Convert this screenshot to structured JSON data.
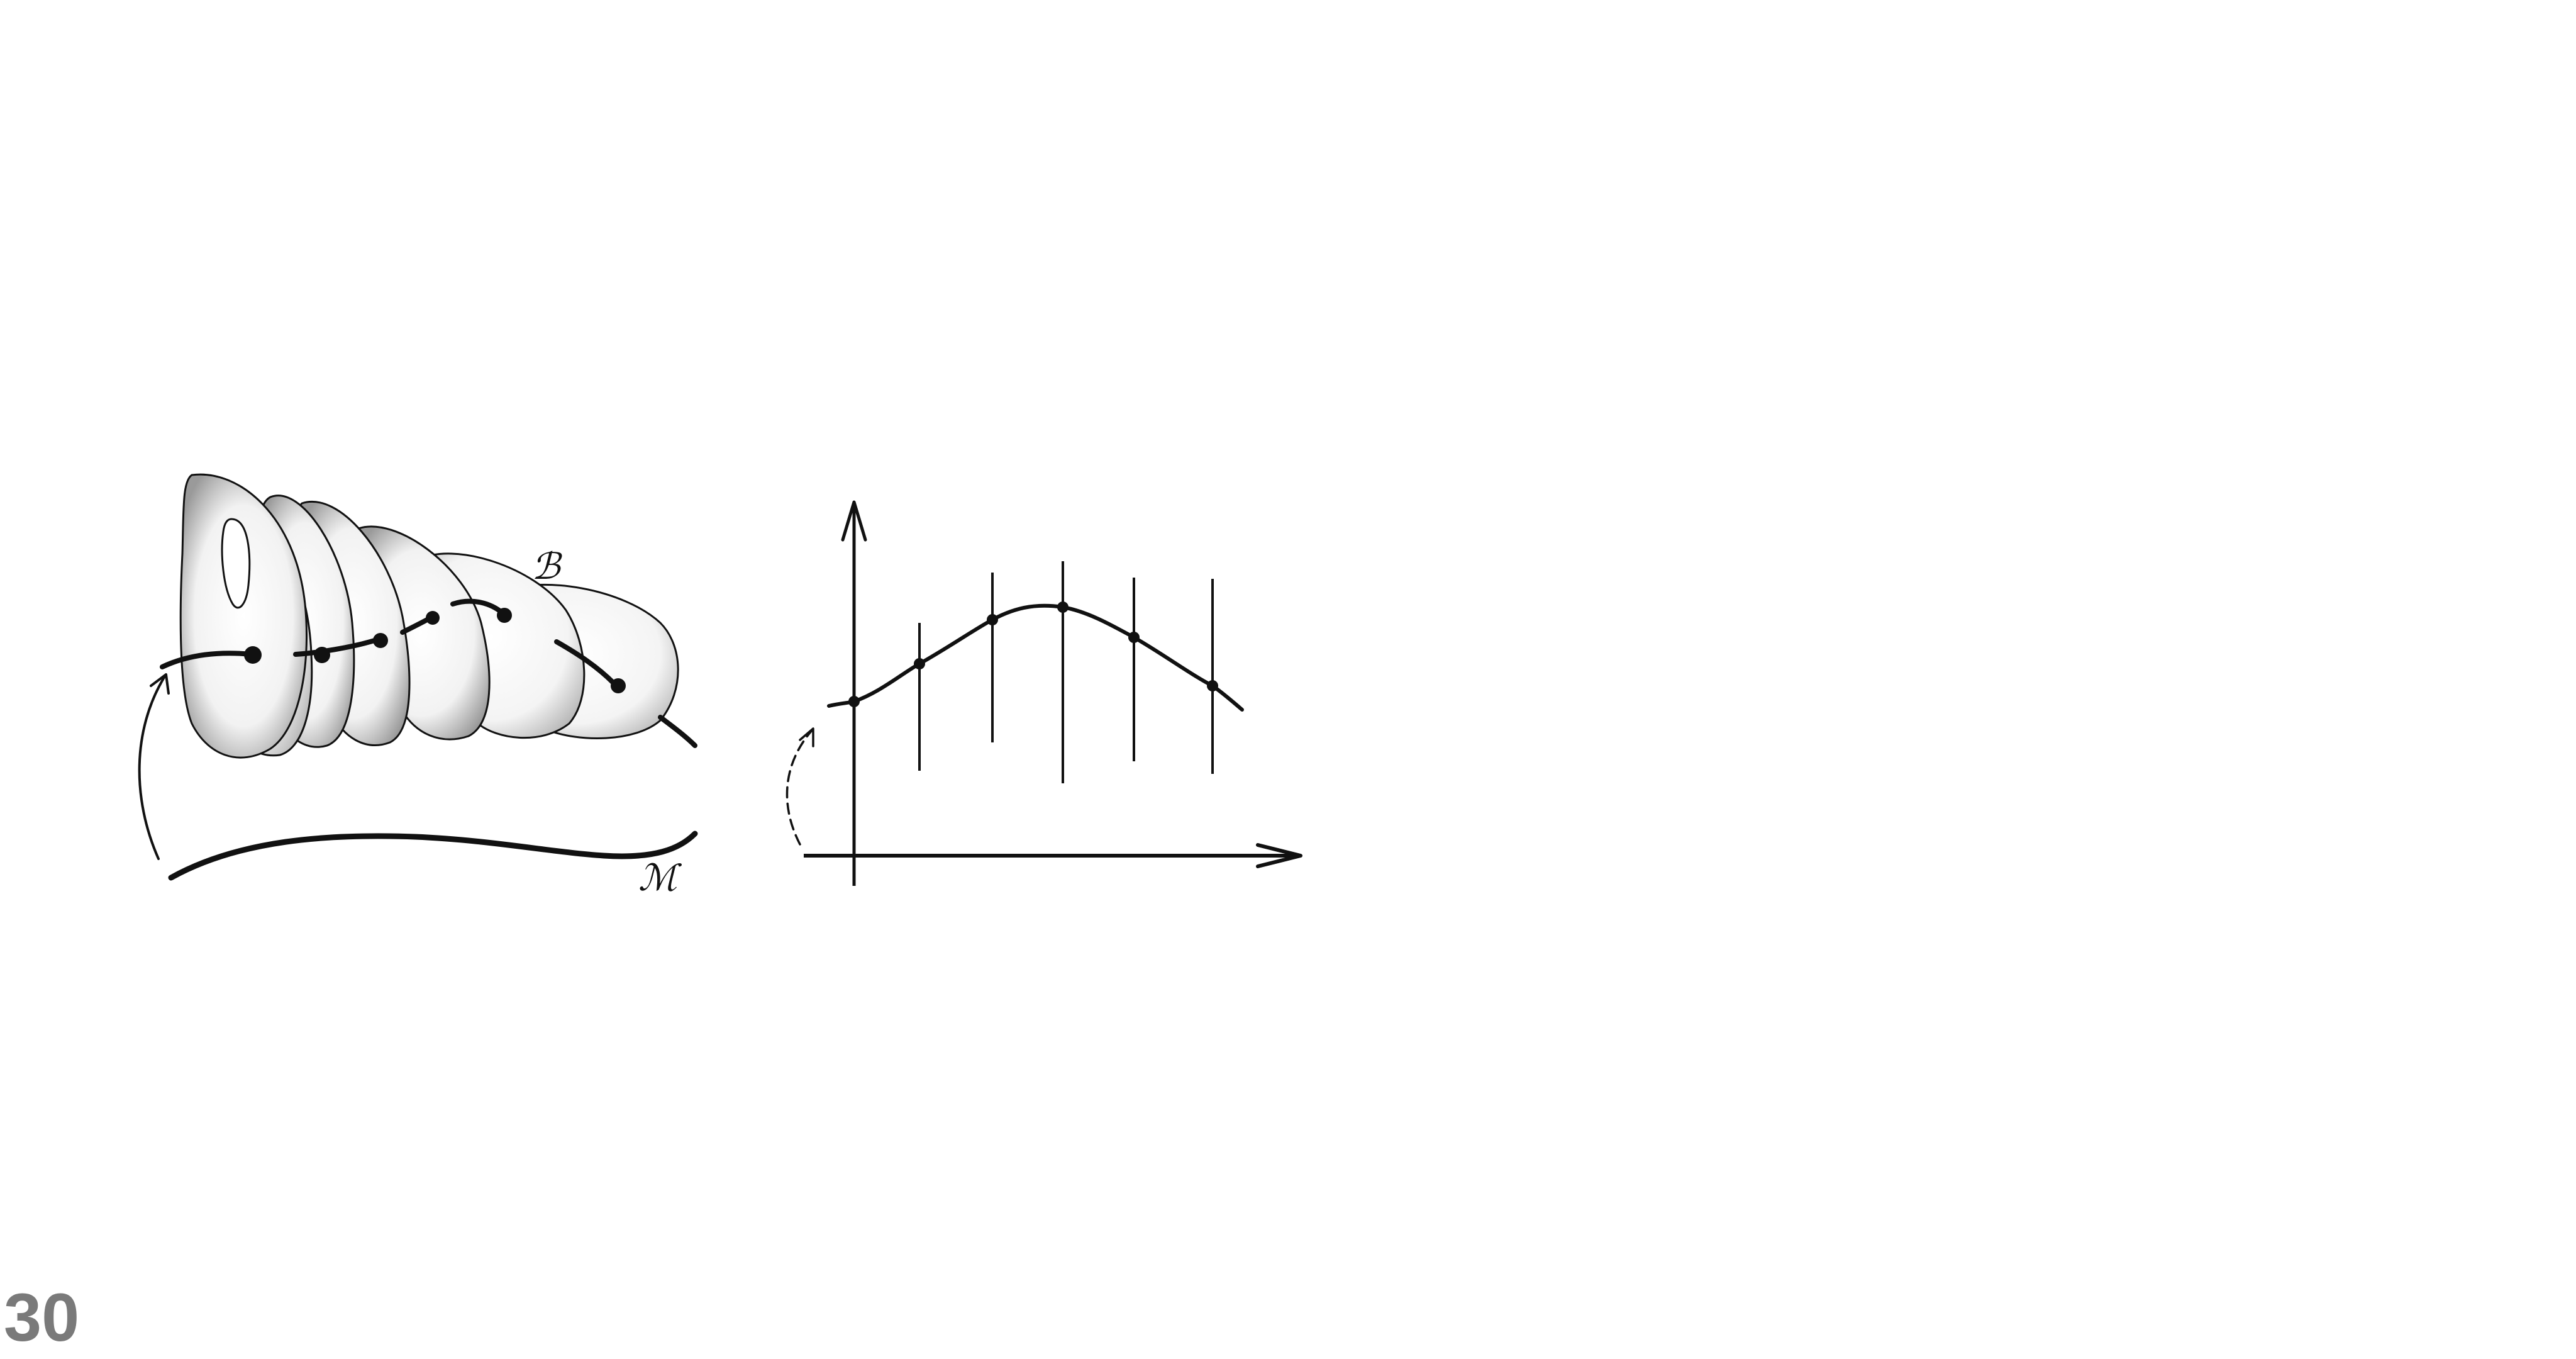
{
  "page": {
    "number": "30"
  },
  "left_panel": {
    "bundle_label": "ℬ",
    "base_label": "ℳ",
    "fiber_count": 7
  },
  "right_panel": {
    "fiber_count": 6,
    "section_points": 6
  }
}
